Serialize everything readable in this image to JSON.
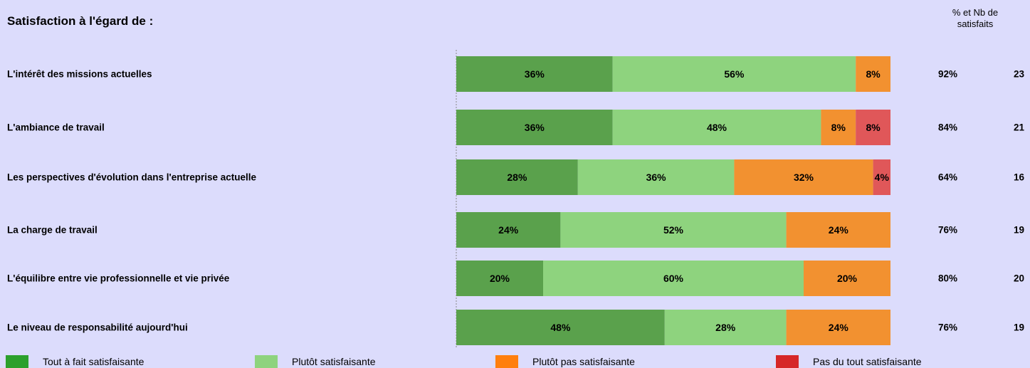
{
  "title": "Satisfaction à l'égard de :",
  "column_header": "% et Nb de satisfaits",
  "colors": {
    "background": "#dcdcfc",
    "tout_a_fait": "#5aa14c",
    "plutot": "#8ed37e",
    "plutot_pas": "#f29130",
    "pas_du_tout": "#e05759",
    "legend_tout_a_fait": "#2ca02c",
    "legend_plutot": "#8ed37e",
    "legend_plutot_pas": "#ff7f0e",
    "legend_pas_du_tout": "#d62728"
  },
  "chart_data": {
    "type": "bar",
    "orientation": "horizontal",
    "stacked": true,
    "xlim": [
      0,
      100
    ],
    "unit": "%",
    "grid": false,
    "legend_position": "bottom",
    "categories": [
      "L'intérêt des missions actuelles",
      "L'ambiance de travail",
      "Les perspectives d'évolution dans l'entreprise actuelle",
      "La charge de travail",
      "L'équilibre entre vie professionnelle et vie privée",
      "Le niveau de responsabilité aujourd'hui"
    ],
    "series": [
      {
        "name": "Tout à fait satisfaisante",
        "color_key": "tout_a_fait",
        "values": [
          36,
          36,
          28,
          24,
          20,
          48
        ],
        "labels": [
          "36%",
          "36%",
          "28%",
          "24%",
          "20%",
          "48%"
        ]
      },
      {
        "name": "Plutôt satisfaisante",
        "color_key": "plutot",
        "values": [
          56,
          48,
          36,
          52,
          60,
          28
        ],
        "labels": [
          "56%",
          "48%",
          "36%",
          "52%",
          "60%",
          "28%"
        ]
      },
      {
        "name": "Plutôt pas satisfaisante",
        "color_key": "plutot_pas",
        "values": [
          8,
          8,
          32,
          24,
          20,
          24
        ],
        "labels": [
          "8%",
          "8%",
          "32%",
          "24%",
          "20%",
          "24%"
        ]
      },
      {
        "name": "Pas du tout satisfaisante",
        "color_key": "pas_du_tout",
        "values": [
          0,
          8,
          4,
          0,
          0,
          0
        ],
        "labels": [
          "",
          "8%",
          "4%",
          "",
          "",
          ""
        ]
      }
    ],
    "satisfied_pct": [
      "92%",
      "84%",
      "64%",
      "76%",
      "80%",
      "76%"
    ],
    "satisfied_nb": [
      "23",
      "21",
      "16",
      "19",
      "20",
      "19"
    ]
  },
  "legend": [
    {
      "label": "Tout à fait satisfaisante",
      "color_key": "legend_tout_a_fait"
    },
    {
      "label": "Plutôt satisfaisante",
      "color_key": "legend_plutot"
    },
    {
      "label": "Plutôt pas satisfaisante",
      "color_key": "legend_plutot_pas"
    },
    {
      "label": "Pas du tout satisfaisante",
      "color_key": "legend_pas_du_tout"
    }
  ]
}
